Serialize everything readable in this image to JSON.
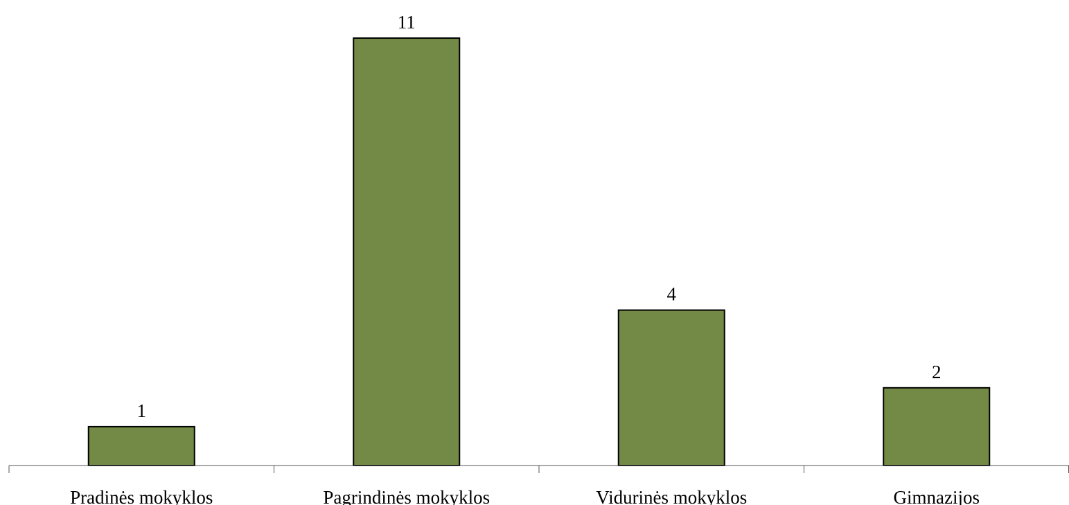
{
  "chart_data": {
    "type": "bar",
    "categories": [
      "Pradinės mokyklos",
      "Pagrindinės mokyklos",
      "Vidurinės mokyklos",
      "Gimnazijos"
    ],
    "values": [
      1,
      11,
      4,
      2
    ],
    "color": "#738a46",
    "ylim": [
      0,
      11
    ],
    "grid": false
  }
}
